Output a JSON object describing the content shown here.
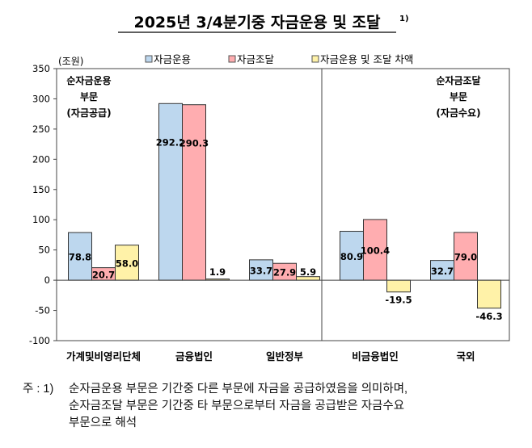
{
  "chart_data": {
    "type": "bar",
    "title": "2025년 3/4분기중 자금운용 및 조달",
    "title_superscript": "1)",
    "unit_label": "(조원)",
    "categories": [
      "가계및비영리단체",
      "금융법인",
      "일반정부",
      "비금융법인",
      "국외"
    ],
    "series": [
      {
        "name": "자금운용",
        "color": "#bdd7ee",
        "values": [
          78.8,
          292.2,
          33.7,
          80.9,
          32.7
        ]
      },
      {
        "name": "자금조달",
        "color": "#ffadb0",
        "values": [
          20.7,
          290.3,
          27.9,
          100.4,
          79.0
        ]
      },
      {
        "name": "자금운용 및 조달 차액",
        "color": "#fff2a8",
        "values": [
          58.0,
          1.9,
          5.9,
          -19.5,
          -46.3
        ]
      }
    ],
    "data_labels": [
      [
        "78.8",
        "292.2",
        "33.7",
        "80.9",
        "32.7"
      ],
      [
        "20.7",
        "290.3",
        "27.9",
        "100.4",
        "79.0"
      ],
      [
        "58.0",
        "1.9",
        "5.9",
        "-19.5",
        "-46.3"
      ]
    ],
    "ylim": [
      -100,
      350
    ],
    "yticks": [
      -100,
      -50,
      0,
      50,
      100,
      150,
      200,
      250,
      300,
      350
    ],
    "grid": false,
    "legend_position": "top",
    "annotations": {
      "left_panel": [
        "순자금운용",
        "부문",
        "(자금공급)"
      ],
      "right_panel": [
        "순자금조달",
        "부문",
        "(자금수요)"
      ]
    }
  },
  "note": {
    "prefix": "주 : 1)",
    "lines": [
      "순자금운용 부문은 기간중 다른 부문에 자금을 공급하였음을 의미하며,",
      "순자금조달 부문은 기간중 타 부문으로부터 자금을 공급받은 자금수요",
      "부문으로 해석"
    ]
  }
}
